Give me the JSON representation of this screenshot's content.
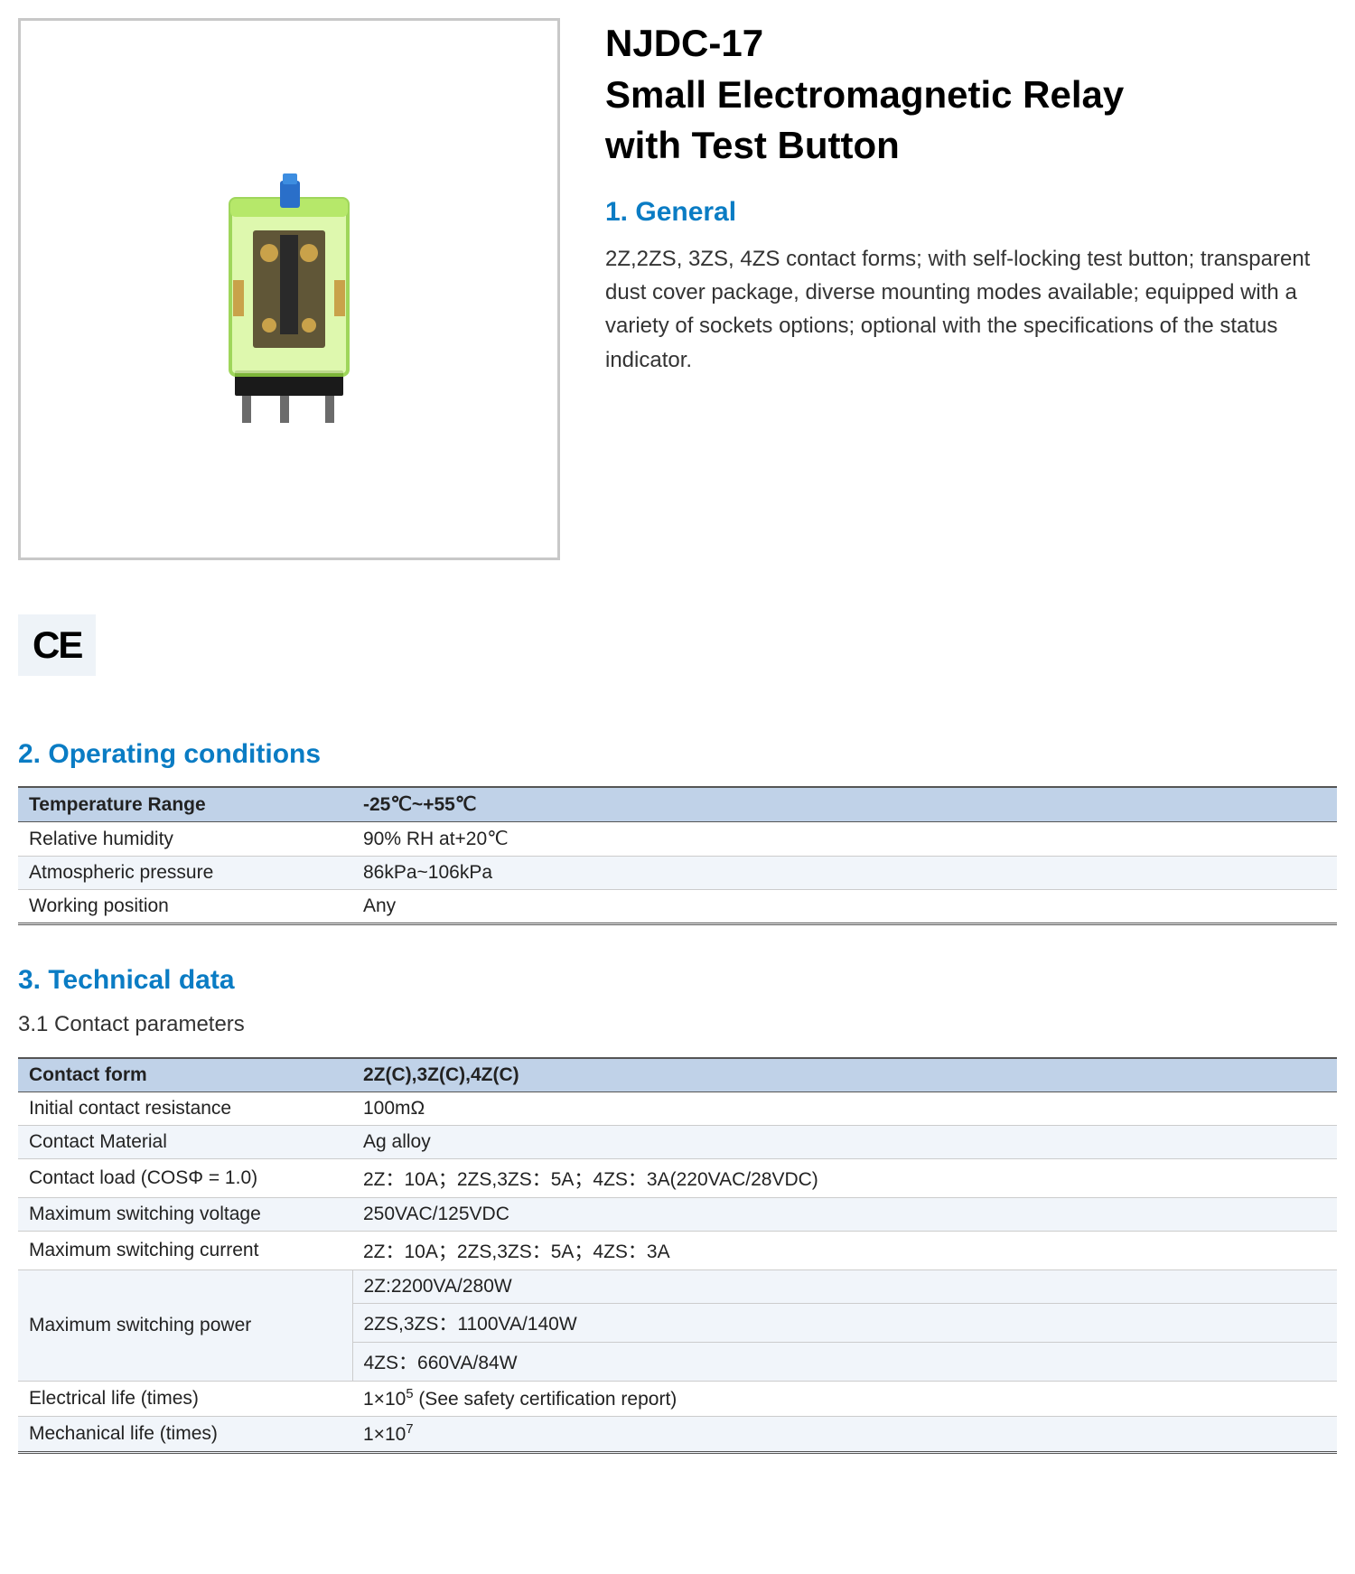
{
  "product": {
    "model": "NJDC-17",
    "name_line2": "Small Electromagnetic Relay",
    "name_line3": "with Test Button"
  },
  "section1": {
    "heading": "1. General",
    "body": "2Z,2ZS, 3ZS, 4ZS contact forms; with self-locking test button; transparent dust cover package, diverse mounting modes available; equipped with a variety of sockets options; optional with the specifications of the status indicator."
  },
  "ce_label": "CE",
  "section2": {
    "heading": "2. Operating conditions",
    "table": {
      "header": [
        "Temperature Range",
        "-25℃~+55℃"
      ],
      "rows": [
        [
          "Relative humidity",
          "90% RH at+20℃"
        ],
        [
          "Atmospheric pressure",
          "86kPa~106kPa"
        ],
        [
          "Working position",
          "Any"
        ]
      ]
    }
  },
  "section3": {
    "heading": "3. Technical data",
    "sub1": "3.1 Contact parameters",
    "table": {
      "header": [
        "Contact form",
        "2Z(C),3Z(C),4Z(C)"
      ],
      "rows": [
        {
          "label": "Initial contact resistance",
          "value": "100mΩ"
        },
        {
          "label": "Contact Material",
          "value": "Ag alloy"
        },
        {
          "label": "Contact load (COSΦ = 1.0)",
          "value": "2Z：10A；2ZS,3ZS：5A；4ZS：3A(220VAC/28VDC)"
        },
        {
          "label": "Maximum switching voltage",
          "value": "250VAC/125VDC"
        },
        {
          "label": "Maximum switching current",
          "value": "2Z：10A；2ZS,3ZS：5A；4ZS：3A"
        }
      ],
      "msp_label": "Maximum switching power",
      "msp_values": [
        "2Z:2200VA/280W",
        "2ZS,3ZS：1100VA/140W",
        "4ZS：660VA/84W"
      ],
      "tail": [
        {
          "label": "Electrical life (times)",
          "value_html": "1×10<sup>5</sup> (See safety certification report)"
        },
        {
          "label": "Mechanical life (times)",
          "value_html": "1×10<sup>7</sup>"
        }
      ]
    }
  },
  "colors": {
    "heading_blue": "#0a7cc4",
    "table_header_bg": "#c0d2e8",
    "alt_row_bg": "#f1f5fa",
    "frame_border": "#c8c8c8",
    "ce_bg": "#eef3f8"
  },
  "image": {
    "case_color": "#b6e86a",
    "case_highlight": "#d9f7a0",
    "internal_metal": "#c9a24a",
    "internal_dark": "#4a3a22",
    "base_color": "#1a1a1a",
    "button_blue": "#2a6fc9"
  }
}
